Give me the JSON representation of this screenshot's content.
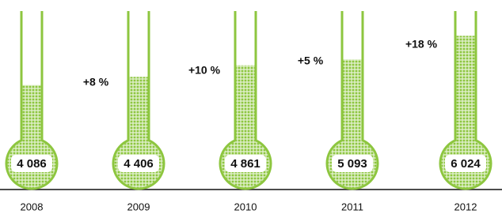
{
  "chart_data": {
    "type": "flask",
    "categories": [
      "2008",
      "2009",
      "2010",
      "2011",
      "2012"
    ],
    "values": [
      4086,
      4406,
      4861,
      5093,
      6024
    ],
    "value_labels": [
      "4 086",
      "4 406",
      "4 861",
      "5 093",
      "6 024"
    ],
    "annotations": [
      "+8 %",
      "+10 %",
      "+5 %",
      "+18 %"
    ],
    "color": "#8dc63f",
    "ylim": [
      0,
      7000
    ]
  }
}
